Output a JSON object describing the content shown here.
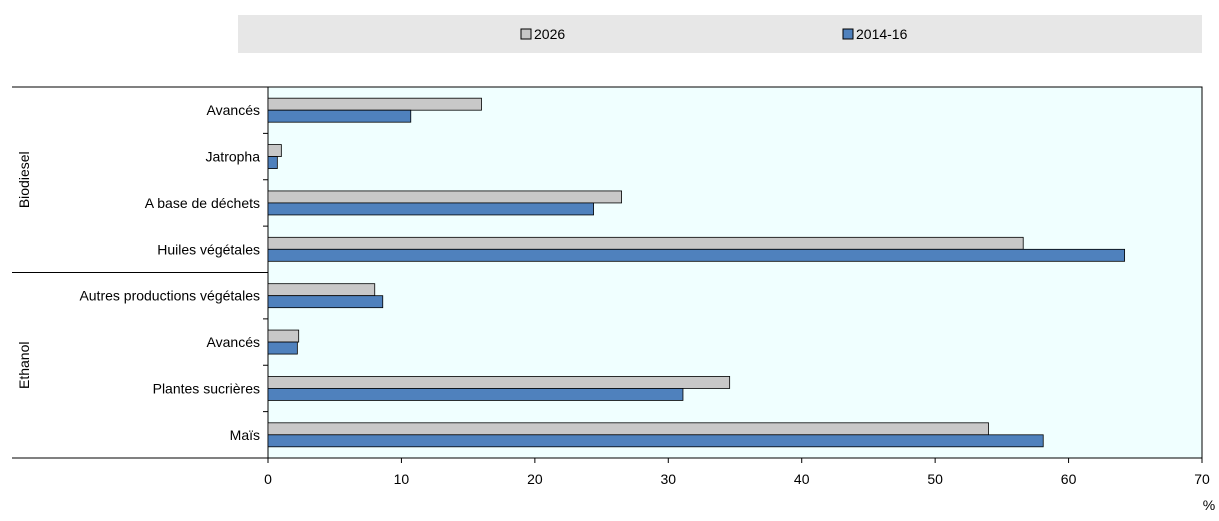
{
  "chart_data": {
    "type": "bar",
    "orientation": "horizontal",
    "legend_position": "top",
    "grid": false,
    "xlim": [
      0,
      70
    ],
    "x_ticks": [
      0,
      10,
      20,
      30,
      40,
      50,
      60,
      70
    ],
    "xlabel": "%",
    "colors": {
      "2026": "#c8c8c8",
      "2014-16": "#4f81bd",
      "plot_bg": "#f0ffff",
      "legend_bg": "#e7e7e7"
    },
    "groups": [
      {
        "label": "Biodiesel",
        "categories": [
          "Avancés",
          "Jatropha",
          "A base de déchets",
          "Huiles végétales"
        ]
      },
      {
        "label": "Ethanol",
        "categories": [
          "Autres productions végétales",
          "Avancés",
          "Plantes sucrières",
          "Maïs"
        ]
      }
    ],
    "series": [
      {
        "name": "2026",
        "values": [
          16,
          1,
          26.5,
          56.6,
          8,
          2.3,
          34.6,
          54
        ]
      },
      {
        "name": "2014-16",
        "values": [
          10.7,
          0.7,
          24.4,
          64.2,
          8.6,
          2.2,
          31.1,
          58.1
        ]
      }
    ]
  }
}
